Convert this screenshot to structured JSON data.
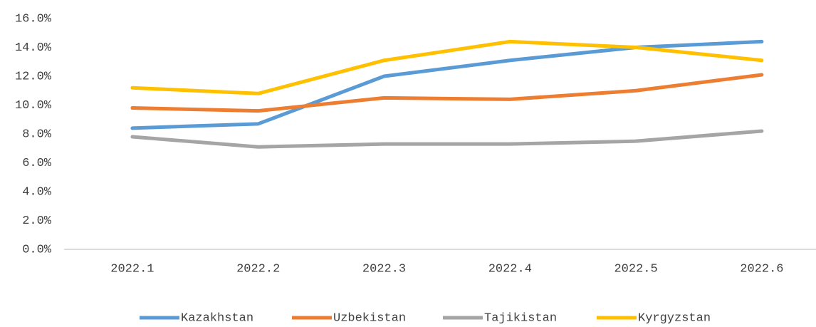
{
  "chart_data": {
    "type": "line",
    "categories": [
      "2022.1",
      "2022.2",
      "2022.3",
      "2022.4",
      "2022.5",
      "2022.6"
    ],
    "series": [
      {
        "name": "Kazakhstan",
        "color": "#5b9bd5",
        "values": [
          8.4,
          8.7,
          12.0,
          13.1,
          14.0,
          14.4
        ]
      },
      {
        "name": "Uzbekistan",
        "color": "#ed7d31",
        "values": [
          9.8,
          9.6,
          10.5,
          10.4,
          11.0,
          12.1
        ]
      },
      {
        "name": "Tajikistan",
        "color": "#a5a5a5",
        "values": [
          7.8,
          7.1,
          7.3,
          7.3,
          7.5,
          8.2
        ]
      },
      {
        "name": "Kyrgyzstan",
        "color": "#ffc000",
        "values": [
          11.2,
          10.8,
          13.1,
          14.4,
          14.0,
          13.1
        ]
      }
    ],
    "ylim": [
      0,
      16
    ],
    "yticks": [
      {
        "value": 0,
        "label": "0.0%"
      },
      {
        "value": 2,
        "label": "2.0%"
      },
      {
        "value": 4,
        "label": "4.0%"
      },
      {
        "value": 6,
        "label": "6.0%"
      },
      {
        "value": 8,
        "label": "8.0%"
      },
      {
        "value": 10,
        "label": "10.0%"
      },
      {
        "value": 12,
        "label": "12.0%"
      },
      {
        "value": 14,
        "label": "14.0%"
      },
      {
        "value": 16,
        "label": "16.0%"
      }
    ],
    "grid": false,
    "legend": "bottom"
  }
}
